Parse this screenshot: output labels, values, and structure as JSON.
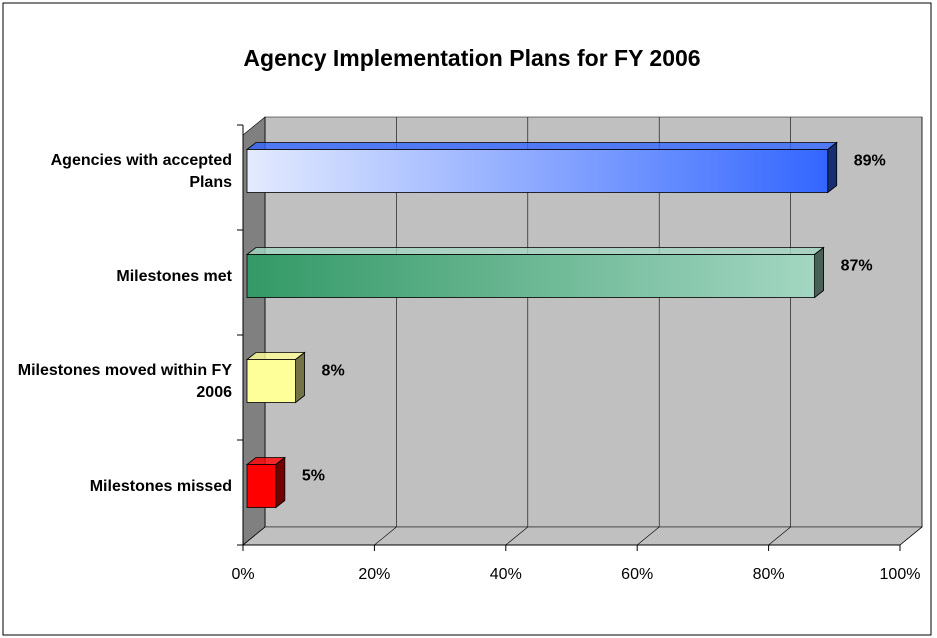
{
  "chart_data": {
    "type": "bar3d",
    "title": "Agency Implementation Plans for FY 2006",
    "categories": [
      "Agencies with accepted Plans",
      "Milestones met",
      "Milestones moved within FY 2006",
      "Milestones missed"
    ],
    "values": [
      89,
      87,
      8,
      5
    ],
    "value_labels": [
      "89%",
      "87%",
      "8%",
      "5%"
    ],
    "colors": [
      [
        "#e4ebff",
        "#3366ff"
      ],
      [
        "#339966",
        "#a3d6c2"
      ],
      [
        "#ffff99",
        "#ffff99"
      ],
      [
        "#ff0000",
        "#ff0000"
      ]
    ],
    "xlim": [
      0,
      100
    ],
    "xticks": [
      {
        "value": 0,
        "label": "0%"
      },
      {
        "value": 20,
        "label": "20%"
      },
      {
        "value": 40,
        "label": "40%"
      },
      {
        "value": 60,
        "label": "60%"
      },
      {
        "value": 80,
        "label": "80%"
      },
      {
        "value": 100,
        "label": "100%"
      }
    ],
    "grid": true
  }
}
